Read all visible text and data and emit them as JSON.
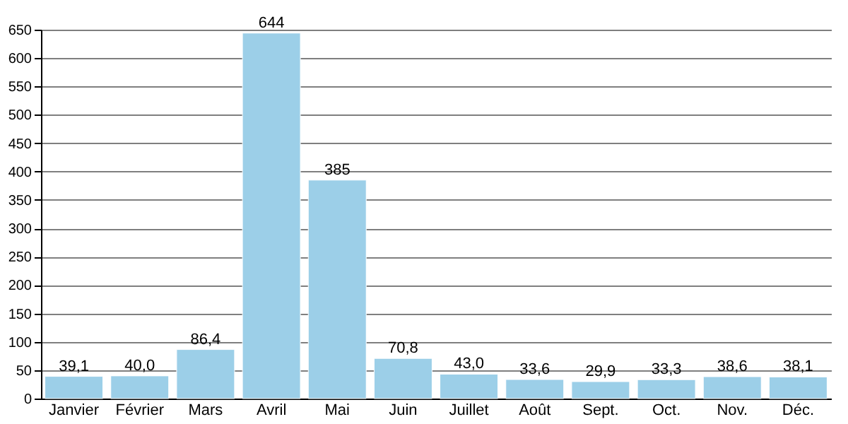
{
  "chart_data": {
    "type": "bar",
    "categories": [
      "Janvier",
      "Février",
      "Mars",
      "Avril",
      "Mai",
      "Juin",
      "Juillet",
      "Août",
      "Sept.",
      "Oct.",
      "Nov.",
      "Déc."
    ],
    "values": [
      39.1,
      40.0,
      86.4,
      644,
      385,
      70.8,
      43.0,
      33.6,
      29.9,
      33.3,
      38.6,
      38.1
    ],
    "value_labels": [
      "39,1",
      "40,0",
      "86,4",
      "644",
      "385",
      "70,8",
      "43,0",
      "33,6",
      "29,9",
      "33,3",
      "38,6",
      "38,1"
    ],
    "color": "#9ccfe8",
    "ylim": [
      0,
      650
    ],
    "yticks": [
      0,
      50,
      100,
      150,
      200,
      250,
      300,
      350,
      400,
      450,
      500,
      550,
      600,
      650
    ],
    "grid": "y"
  }
}
